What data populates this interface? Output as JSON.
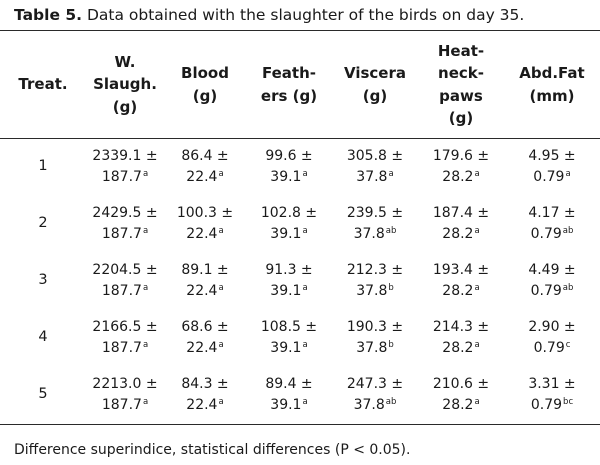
{
  "caption": {
    "label": "Table 5.",
    "text": " Data obtained with the slaughter of the birds on day 35."
  },
  "columns": [
    {
      "key": "treat",
      "lines": [
        "Treat."
      ]
    },
    {
      "key": "w_slaugh",
      "lines": [
        "W.",
        "Slaugh.",
        "(g)"
      ]
    },
    {
      "key": "blood",
      "lines": [
        "Blood",
        "(g)"
      ]
    },
    {
      "key": "feathers",
      "lines": [
        "Feath-",
        "ers (g)"
      ]
    },
    {
      "key": "viscera",
      "lines": [
        "Viscera",
        "(g)"
      ]
    },
    {
      "key": "heat_neck_paws",
      "lines": [
        "Heat-",
        "neck-",
        "paws",
        "(g)"
      ]
    },
    {
      "key": "abd_fat",
      "lines": [
        "Abd.Fat",
        "(mm)"
      ]
    }
  ],
  "rows": [
    {
      "treat": "1",
      "cells": [
        {
          "mean": "2339.1 ±",
          "sd": "187.7",
          "sup": "a"
        },
        {
          "mean": "86.4 ±",
          "sd": "22.4",
          "sup": "a"
        },
        {
          "mean": "99.6 ±",
          "sd": "39.1",
          "sup": "a"
        },
        {
          "mean": "305.8 ±",
          "sd": "37.8",
          "sup": "a"
        },
        {
          "mean": "179.6 ±",
          "sd": "28.2",
          "sup": "a"
        },
        {
          "mean": "4.95 ±",
          "sd": "0.79",
          "sup": "a"
        }
      ]
    },
    {
      "treat": "2",
      "cells": [
        {
          "mean": "2429.5 ±",
          "sd": "187.7",
          "sup": "a"
        },
        {
          "mean": "100.3 ±",
          "sd": "22.4",
          "sup": "a"
        },
        {
          "mean": "102.8 ±",
          "sd": "39.1",
          "sup": "a"
        },
        {
          "mean": "239.5 ±",
          "sd": "37.8",
          "sup": "ab"
        },
        {
          "mean": "187.4 ±",
          "sd": "28.2",
          "sup": "a"
        },
        {
          "mean": "4.17 ±",
          "sd": "0.79",
          "sup": "ab"
        }
      ]
    },
    {
      "treat": "3",
      "cells": [
        {
          "mean": "2204.5 ±",
          "sd": "187.7",
          "sup": "a"
        },
        {
          "mean": "89.1 ±",
          "sd": "22.4",
          "sup": "a"
        },
        {
          "mean": "91.3 ±",
          "sd": "39.1",
          "sup": "a"
        },
        {
          "mean": "212.3 ±",
          "sd": "37.8",
          "sup": "b"
        },
        {
          "mean": "193.4 ±",
          "sd": "28.2",
          "sup": "a"
        },
        {
          "mean": "4.49 ±",
          "sd": "0.79",
          "sup": "ab"
        }
      ]
    },
    {
      "treat": "4",
      "cells": [
        {
          "mean": "2166.5 ±",
          "sd": "187.7",
          "sup": "a"
        },
        {
          "mean": "68.6 ±",
          "sd": "22.4",
          "sup": "a"
        },
        {
          "mean": "108.5 ±",
          "sd": "39.1",
          "sup": "a"
        },
        {
          "mean": "190.3 ±",
          "sd": "37.8",
          "sup": "b"
        },
        {
          "mean": "214.3 ±",
          "sd": "28.2",
          "sup": "a"
        },
        {
          "mean": "2.90 ±",
          "sd": "0.79",
          "sup": "c"
        }
      ]
    },
    {
      "treat": "5",
      "cells": [
        {
          "mean": "2213.0 ±",
          "sd": "187.7",
          "sup": "a"
        },
        {
          "mean": "84.3 ±",
          "sd": "22.4",
          "sup": "a"
        },
        {
          "mean": "89.4 ±",
          "sd": "39.1",
          "sup": "a"
        },
        {
          "mean": "247.3 ±",
          "sd": "37.8",
          "sup": "ab"
        },
        {
          "mean": "210.6 ±",
          "sd": "28.2",
          "sup": "a"
        },
        {
          "mean": "3.31 ±",
          "sd": "0.79",
          "sup": "bc"
        }
      ]
    }
  ],
  "footnote": "Difference superindice, statistical differences (P < 0.05)."
}
